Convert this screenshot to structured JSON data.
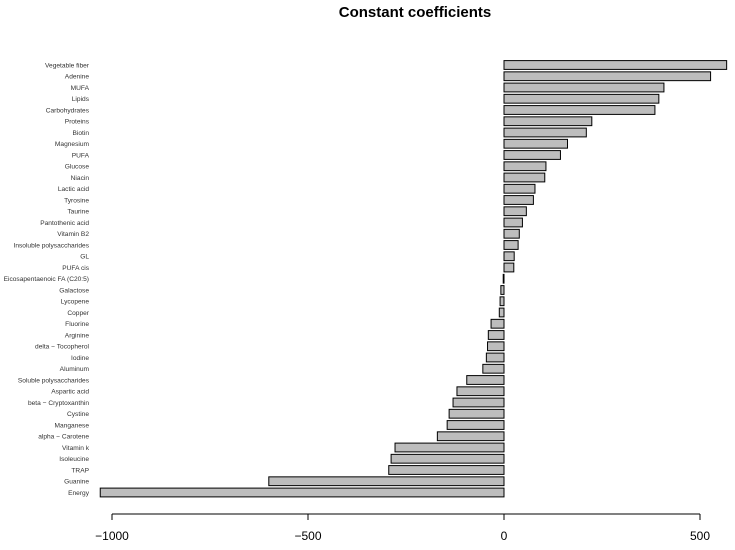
{
  "chart_data": {
    "type": "bar",
    "orientation": "horizontal",
    "title": "Constant coefficients",
    "xlabel": "",
    "ylabel": "",
    "xlim": [
      -1030,
      565
    ],
    "xticks": [
      -1000,
      -500,
      0,
      500
    ],
    "xtick_labels": [
      "−1000",
      "−500",
      "0",
      "500"
    ],
    "grid": false,
    "bar_color": "#bdbdbd",
    "categories": [
      "Vegetable fiber",
      "Adenine",
      "MUFA",
      "Lipids",
      "Carbohydrates",
      "Proteins",
      "Biotin",
      "Magnesium",
      "PUFA",
      "Glucose",
      "Niacin",
      "Lactic acid",
      "Tyrosine",
      "Taurine",
      "Pantothenic acid",
      "Vitamin B2",
      "Insoluble polysaccharides",
      "GL",
      "PUFA cis",
      "Eicosapentaenoic FA (C20:5)",
      "Galactose",
      "Lycopene",
      "Copper",
      "Fluorine",
      "Arginine",
      "delta − Tocopherol",
      "Iodine",
      "Aluminum",
      "Soluble polysaccharides",
      "Aspartic acid",
      "beta − Cryptoxanthin",
      "Cystine",
      "Manganese",
      "alpha − Carotene",
      "Vitamin k",
      "Isoleucine",
      "TRAP",
      "Guanine",
      "Energy"
    ],
    "values": [
      568,
      527,
      408,
      395,
      385,
      224,
      210,
      162,
      144,
      107,
      104,
      79,
      75,
      57,
      47,
      39,
      36,
      26,
      25,
      -2,
      -8,
      -10,
      -12,
      -33,
      -40,
      -42,
      -45,
      -54,
      -95,
      -120,
      -130,
      -140,
      -145,
      -170,
      -278,
      -288,
      -294,
      -600,
      -1030
    ]
  }
}
